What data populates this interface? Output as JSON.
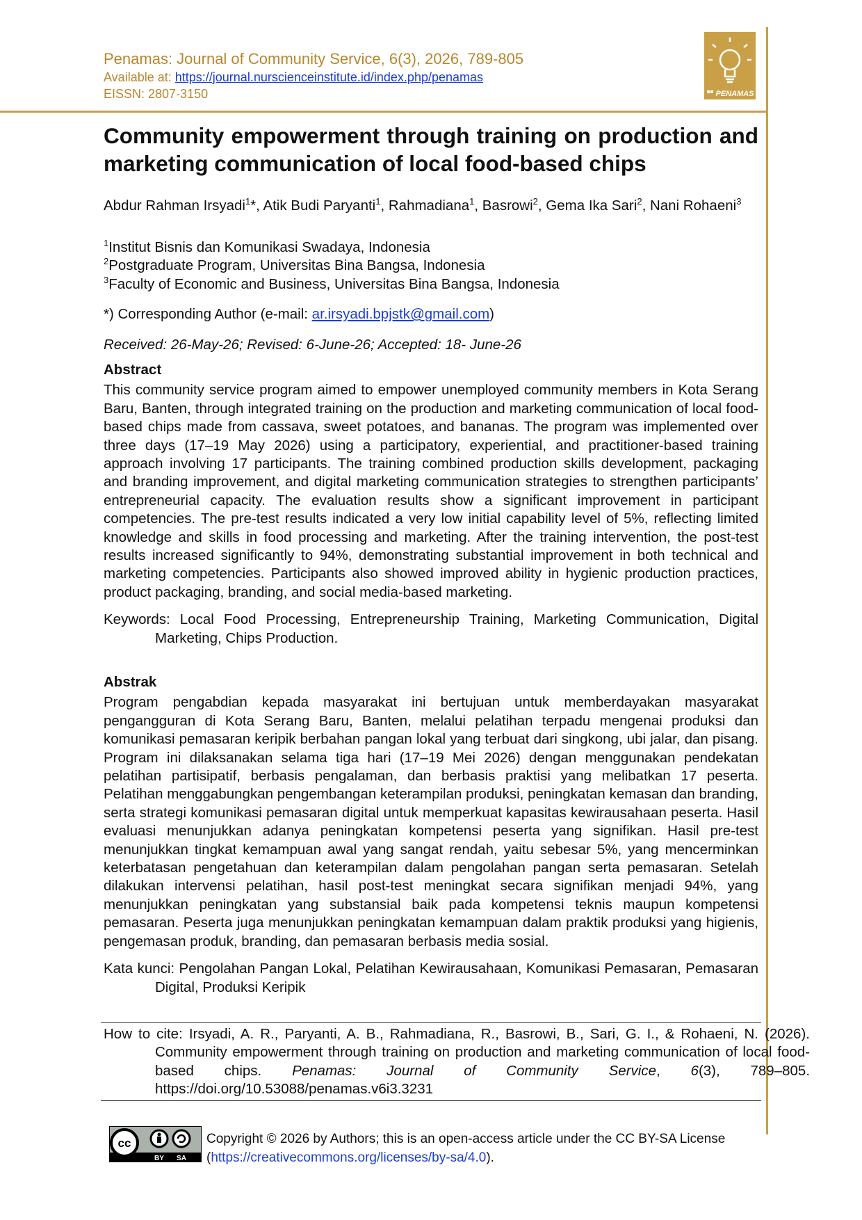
{
  "header": {
    "journal": "Penamas: Journal of Community Service, 6(3), 2026, 789-805",
    "available_label": "Available at:",
    "url": "https://journal.nurscienceinstitute.id/index.php/penamas",
    "eissn": "EISSN: 2807-3150",
    "logo_text": "PENAMAS"
  },
  "title": "Community empowerment through training on production and marketing communication of local food-based chips",
  "authors": [
    {
      "text": "Abdur Rahman Irsyadi",
      "sup": "1"
    },
    {
      "text": "*, Atik Budi Paryanti",
      "sup": "1"
    },
    {
      "text": ", Rahmadiana",
      "sup": "1"
    },
    {
      "text": ", Basrowi",
      "sup": "2"
    },
    {
      "text": ", Gema Ika Sari",
      "sup": "2"
    },
    {
      "text": ", Nani Rohaeni",
      "sup": "3"
    }
  ],
  "affiliations": [
    {
      "sup": "1",
      "text": "Institut Bisnis dan Komunikasi Swadaya, Indonesia"
    },
    {
      "sup": "2",
      "text": "Postgraduate Program, Universitas Bina Bangsa, Indonesia"
    },
    {
      "sup": "3",
      "text": "Faculty of Economic and Business, Universitas Bina Bangsa, Indonesia"
    }
  ],
  "corresponding": {
    "prefix": "*) Corresponding Author (e-mail:",
    "email": "ar.irsyadi.bpjstk@gmail.com",
    "suffix": ")"
  },
  "dates": "Received: 26-May-26; Revised: 6-June-26; Accepted: 18- June-26",
  "abstract": {
    "heading": "Abstract",
    "text": "This community service program aimed to empower unemployed community members in Kota Serang Baru, Banten, through integrated training on the production and marketing communication of local food-based chips made from cassava, sweet potatoes, and bananas. The program was implemented over three days (17–19 May 2026) using a participatory, experiential, and practitioner-based training approach involving 17 participants. The training combined production skills development, packaging and branding improvement, and digital marketing communication strategies to strengthen participants’ entrepreneurial capacity. The evaluation results show a significant improvement in participant competencies. The pre-test results indicated a very low initial capability level of 5%, reflecting limited knowledge and skills in food processing and marketing. After the training intervention, the post-test results increased significantly to 94%, demonstrating substantial improvement in both technical and marketing competencies. Participants also showed improved ability in hygienic production practices, product packaging, branding, and social media-based marketing.",
    "keywords_label": "Keywords:",
    "keywords": "Local Food Processing, Entrepreneurship Training, Marketing Communication, Digital Marketing, Chips Production."
  },
  "abstrak": {
    "heading": "Abstrak",
    "text": "Program pengabdian kepada masyarakat ini bertujuan untuk memberdayakan masyarakat pengangguran di Kota Serang Baru, Banten, melalui pelatihan terpadu mengenai produksi dan komunikasi pemasaran keripik berbahan pangan lokal yang terbuat dari singkong, ubi jalar, dan pisang. Program ini dilaksanakan selama tiga hari (17–19 Mei 2026) dengan menggunakan pendekatan pelatihan partisipatif, berbasis pengalaman, dan berbasis praktisi yang melibatkan 17 peserta. Pelatihan menggabungkan pengembangan keterampilan produksi, peningkatan kemasan dan branding, serta strategi komunikasi pemasaran digital untuk memperkuat kapasitas kewirausahaan peserta. Hasil evaluasi menunjukkan adanya peningkatan kompetensi peserta yang signifikan. Hasil pre-test menunjukkan tingkat kemampuan awal yang sangat rendah, yaitu sebesar 5%, yang mencerminkan keterbatasan pengetahuan dan keterampilan dalam pengolahan pangan serta pemasaran. Setelah dilakukan intervensi pelatihan, hasil post-test meningkat secara signifikan menjadi 94%, yang menunjukkan peningkatan yang substansial baik pada kompetensi teknis maupun kompetensi pemasaran. Peserta juga menunjukkan peningkatan kemampuan dalam praktik produksi yang higienis, pengemasan produk, branding, dan pemasaran berbasis media sosial.",
    "keywords_label": "Kata kunci:",
    "keywords": "Pengolahan Pangan Lokal, Pelatihan Kewirausahaan, Komunikasi Pemasaran, Pemasaran Digital, Produksi Keripik"
  },
  "citation": {
    "label": "How to cite:",
    "text": "Irsyadi, A. R., Paryanti, A. B., Rahmadiana, R., Basrowi, B., Sari, G. I., & Rohaeni, N. (2026). Community empowerment through training on production and marketing communication of local food-based chips.",
    "journal": "Penamas: Journal of Community Service",
    "sep": ",",
    "volume": "6",
    "rest": "(3), 789–805. https://doi.org/10.53088/penamas.v6i3.3231"
  },
  "license": {
    "badge_by": "BY",
    "badge_sa": "SA",
    "text": "Copyright © 2026 by Authors; this is an open-access article under the CC BY-SA License (",
    "url": "https://creativecommons.org/licenses/by-sa/4.0",
    "suffix": ")."
  }
}
